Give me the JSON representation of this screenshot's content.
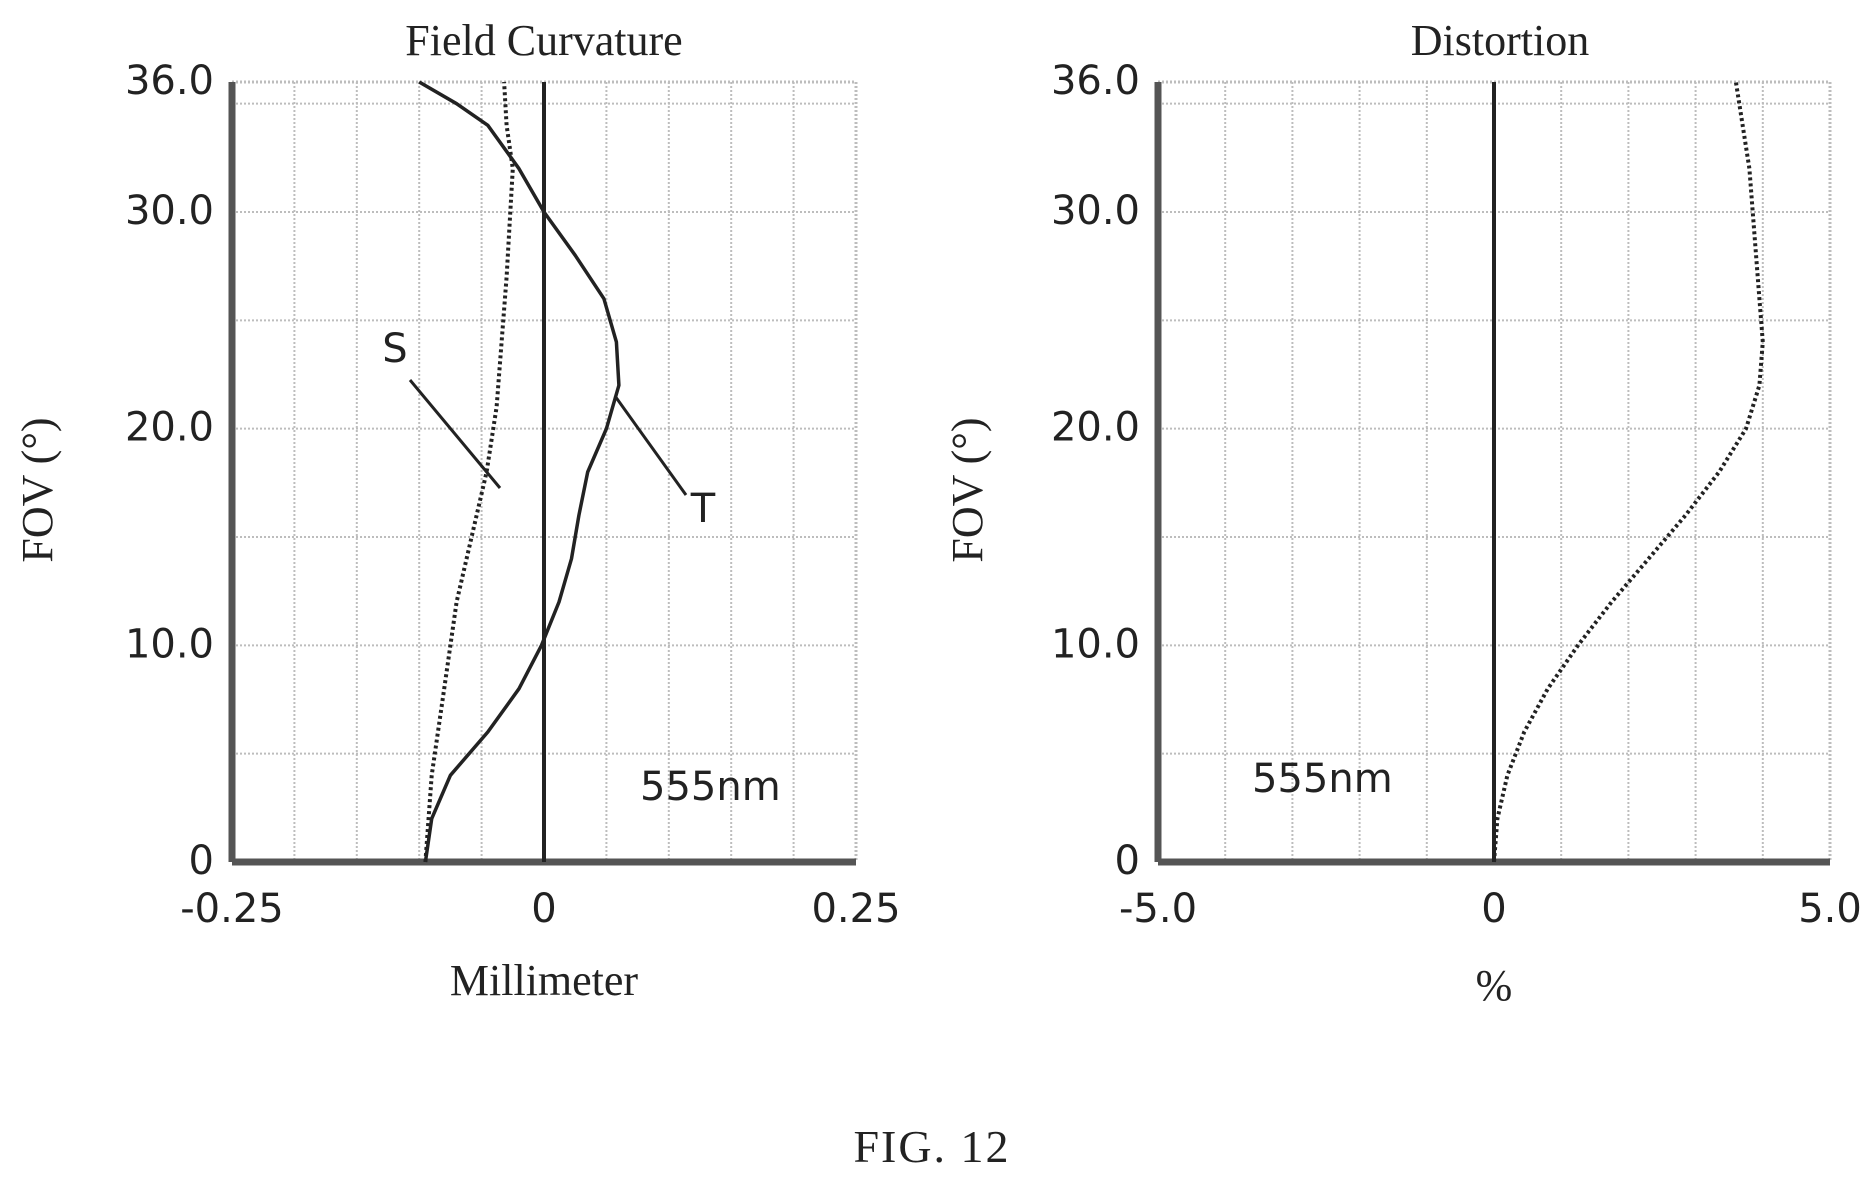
{
  "figure": {
    "caption": "FIG. 12"
  },
  "chart_data": [
    {
      "type": "line",
      "title": "Field Curvature",
      "xlabel": "Millimeter",
      "ylabel": "FOV (°)",
      "xlim": [
        -0.25,
        0.25
      ],
      "ylim": [
        0,
        36.0
      ],
      "xticks": [
        "-0.25",
        "0",
        "0.25"
      ],
      "yticks": [
        "0",
        "10.0",
        "20.0",
        "30.0",
        "36.0"
      ],
      "annotation": "555nm",
      "grid": true,
      "series": [
        {
          "name": "S",
          "style": "dotted",
          "x": [
            -0.095,
            -0.09,
            -0.08,
            -0.07,
            -0.058,
            -0.046,
            -0.038,
            -0.034,
            -0.03,
            -0.027,
            -0.025,
            -0.03,
            -0.032
          ],
          "y": [
            0,
            4,
            8,
            12,
            15,
            18,
            21,
            24,
            27,
            30,
            32,
            34,
            36
          ]
        },
        {
          "name": "T",
          "style": "solid",
          "x": [
            -0.095,
            -0.09,
            -0.075,
            -0.045,
            -0.02,
            -0.002,
            0.012,
            0.022,
            0.028,
            0.035,
            0.05,
            0.06,
            0.058,
            0.048,
            0.025,
            0.0,
            -0.02,
            -0.045,
            -0.07,
            -0.1
          ],
          "y": [
            0,
            2,
            4,
            6,
            8,
            10,
            12,
            14,
            16,
            18,
            20,
            22,
            24,
            26,
            28,
            30,
            32,
            34,
            35,
            36
          ]
        }
      ],
      "labels": [
        {
          "text": "S",
          "series": "S",
          "at_y": 18
        },
        {
          "text": "T",
          "series": "T",
          "at_y": 22
        }
      ]
    },
    {
      "type": "line",
      "title": "Distortion",
      "xlabel": "%",
      "ylabel": "FOV (°)",
      "xlim": [
        -5.0,
        5.0
      ],
      "ylim": [
        0,
        36.0
      ],
      "xticks": [
        "-5.0",
        "0",
        "5.0"
      ],
      "yticks": [
        "0",
        "10.0",
        "20.0",
        "30.0",
        "36.0"
      ],
      "annotation": "555nm",
      "grid": true,
      "series": [
        {
          "style": "dotted",
          "x": [
            0.0,
            0.05,
            0.2,
            0.45,
            0.8,
            1.25,
            1.75,
            2.3,
            2.85,
            3.35,
            3.75,
            3.95,
            4.0,
            3.95,
            3.8,
            3.6
          ],
          "y": [
            0,
            2,
            4,
            6,
            8,
            10,
            12,
            14,
            16,
            18,
            20,
            22,
            24,
            26,
            32,
            36
          ]
        }
      ]
    }
  ],
  "colors": {
    "ink": "#222222",
    "grid": "#bdbdbd",
    "frame": "#555555"
  }
}
